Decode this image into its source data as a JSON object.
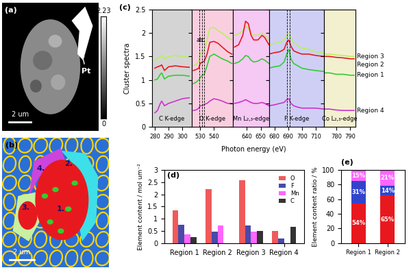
{
  "images": {
    "a": {
      "panel_label": "(a)",
      "annotation": "Pt",
      "scale_bar": "2 um",
      "colorbar_range": [
        0,
        2.23
      ]
    },
    "b": {
      "panel_label": "(b)",
      "scale_bar": "2 um",
      "region_labels": [
        "1.",
        "2.",
        "3.",
        "4."
      ]
    }
  },
  "chart_data": [
    {
      "type": "line",
      "panel_label": "(c)",
      "xlabel": "Photon energy (eV)",
      "ylabel": "Cluster spectra",
      "ylim": [
        0,
        2.5
      ],
      "yticks": [
        0,
        0.5,
        1,
        1.5,
        2,
        2.5
      ],
      "segments": [
        {
          "name": "C K-edge",
          "color": "#d4d4d4",
          "xlim": [
            278,
            307
          ],
          "xticks": [
            280,
            290,
            300
          ],
          "x": [
            280,
            282,
            284,
            285,
            287,
            290,
            295,
            300,
            305
          ]
        },
        {
          "name": "O K-edge",
          "color": "#f9cfe0",
          "xlim": [
            524,
            554
          ],
          "xticks": [
            530,
            540
          ],
          "x": [
            525,
            527,
            529,
            530,
            531.5,
            533,
            535,
            537,
            540,
            543,
            546,
            550,
            553
          ]
        },
        {
          "name": "Mn L₂,₃-edge",
          "color": "#f6c8f4",
          "xlim": [
            630,
            656
          ],
          "xticks": [
            640,
            650
          ],
          "x": [
            631,
            634,
            637,
            639,
            641,
            643,
            645,
            648,
            651,
            653,
            656
          ]
        },
        {
          "name": "F K-edge",
          "color": "#cfcff5",
          "xlim": [
            676,
            716
          ],
          "xticks": [
            680,
            690,
            700,
            710
          ],
          "x": [
            676,
            680,
            684,
            687,
            689,
            690.5,
            692,
            694,
            697,
            700,
            705,
            710,
            716
          ]
        },
        {
          "name": "Co L₂,₃-edge",
          "color": "#f3f0d0",
          "xlim": [
            771,
            794
          ],
          "xticks": [
            780,
            790
          ],
          "x": [
            771,
            775,
            780,
            785,
            790,
            793
          ]
        }
      ],
      "series": [
        {
          "name": "Region 3",
          "color": "#b8f060",
          "values": [
            [
              1.42,
              1.45,
              1.5,
              1.52,
              1.45,
              1.5,
              1.52,
              1.5,
              1.48
            ],
            [
              1.3,
              1.32,
              1.4,
              1.55,
              1.6,
              1.62,
              1.85,
              2.1,
              2.12,
              2.05,
              2.0,
              1.9,
              1.85
            ],
            [
              1.95,
              1.98,
              2.05,
              2.15,
              2.1,
              2.0,
              1.95,
              1.95,
              2.0,
              1.95,
              1.85
            ],
            [
              1.75,
              1.78,
              1.8,
              1.85,
              1.95,
              2.0,
              1.9,
              1.8,
              1.72,
              1.68,
              1.65,
              1.6,
              1.58
            ],
            [
              1.55,
              1.55,
              1.53,
              1.52,
              1.5,
              1.5
            ]
          ]
        },
        {
          "name": "Region 2",
          "color": "#e8191e",
          "values": [
            [
              1.25,
              1.28,
              1.3,
              1.32,
              1.2,
              1.28,
              1.3,
              1.28,
              1.27
            ],
            [
              1.2,
              1.22,
              1.25,
              1.35,
              1.38,
              1.4,
              1.55,
              1.8,
              1.82,
              1.78,
              1.7,
              1.6,
              1.55
            ],
            [
              1.7,
              1.75,
              1.95,
              2.25,
              2.2,
              1.95,
              1.85,
              1.85,
              1.95,
              1.9,
              1.75
            ],
            [
              1.55,
              1.58,
              1.6,
              1.65,
              1.8,
              1.85,
              1.72,
              1.62,
              1.58,
              1.55,
              1.55,
              1.52,
              1.5
            ],
            [
              1.5,
              1.5,
              1.48,
              1.47,
              1.45,
              1.45
            ]
          ]
        },
        {
          "name": "Region 1",
          "color": "#33cc33",
          "values": [
            [
              1.0,
              1.02,
              1.12,
              1.15,
              1.02,
              1.08,
              1.1,
              1.1,
              1.08
            ],
            [
              0.92,
              0.95,
              1.0,
              1.05,
              1.1,
              1.12,
              1.3,
              1.5,
              1.55,
              1.5,
              1.45,
              1.4,
              1.35
            ],
            [
              1.35,
              1.38,
              1.45,
              1.52,
              1.5,
              1.42,
              1.38,
              1.4,
              1.45,
              1.42,
              1.35
            ],
            [
              1.25,
              1.28,
              1.3,
              1.38,
              1.55,
              1.65,
              1.45,
              1.35,
              1.3,
              1.25,
              1.22,
              1.2,
              1.18
            ],
            [
              1.15,
              1.15,
              1.12,
              1.12,
              1.1,
              1.1
            ]
          ]
        },
        {
          "name": "Region 4",
          "color": "#cc33cc",
          "values": [
            [
              0.3,
              0.35,
              0.5,
              0.55,
              0.45,
              0.5,
              0.55,
              0.6,
              0.62
            ],
            [
              0.35,
              0.36,
              0.4,
              0.45,
              0.45,
              0.48,
              0.5,
              0.55,
              0.6,
              0.58,
              0.55,
              0.5,
              0.5
            ],
            [
              0.5,
              0.52,
              0.55,
              0.58,
              0.55,
              0.52,
              0.5,
              0.5,
              0.52,
              0.5,
              0.45
            ],
            [
              0.45,
              0.47,
              0.5,
              0.52,
              0.58,
              0.6,
              0.5,
              0.45,
              0.42,
              0.4,
              0.4,
              0.4,
              0.38
            ],
            [
              0.38,
              0.38,
              0.36,
              0.35,
              0.35,
              0.35
            ]
          ]
        }
      ],
      "reference_lines": [
        {
          "x": 529.5,
          "label": "a"
        },
        {
          "x": 531.5,
          "label": "b"
        },
        {
          "x": 533,
          "label": "c"
        },
        {
          "x": 689
        },
        {
          "x": 691
        }
      ]
    },
    {
      "type": "bar",
      "panel_label": "(d)",
      "ylabel": "Element content / mol um⁻²",
      "categories": [
        "Region 1",
        "Region 2",
        "Region 3",
        "Region 4"
      ],
      "ylim": [
        0,
        3
      ],
      "yticks": [
        0,
        0.5,
        1,
        1.5,
        2,
        2.5,
        3
      ],
      "legend": "upper right",
      "series": [
        {
          "name": "O",
          "color": "#ef5a5a",
          "values": [
            1.35,
            2.23,
            2.57,
            0.5
          ]
        },
        {
          "name": "F",
          "color": "#4a4aa8",
          "values": [
            0.76,
            0.47,
            0.71,
            0.18
          ]
        },
        {
          "name": "Mn",
          "color": "#ff66ff",
          "values": [
            0.36,
            0.71,
            0.47,
            0
          ]
        },
        {
          "name": "C",
          "color": "#333333",
          "values": [
            0.23,
            0,
            0.51,
            0.66
          ]
        }
      ]
    },
    {
      "type": "bar",
      "panel_label": "(e)",
      "ylabel": "Element content ratio / %",
      "stacked": true,
      "data_labels": true,
      "categories": [
        "Region 1",
        "Region 2"
      ],
      "ylim": [
        0,
        100
      ],
      "yticks": [
        0,
        20,
        40,
        60,
        80,
        100
      ],
      "series": [
        {
          "name": "O",
          "color": "#e8191e",
          "values": [
            54,
            65
          ],
          "value_labels": [
            "54%",
            "65%"
          ]
        },
        {
          "name": "F",
          "color": "#3344cc",
          "values": [
            31,
            14
          ],
          "value_labels": [
            "31%",
            "14%"
          ]
        },
        {
          "name": "Mn",
          "color": "#ff66ff",
          "values": [
            15,
            21
          ],
          "value_labels": [
            "15%",
            "21%"
          ]
        }
      ]
    }
  ]
}
